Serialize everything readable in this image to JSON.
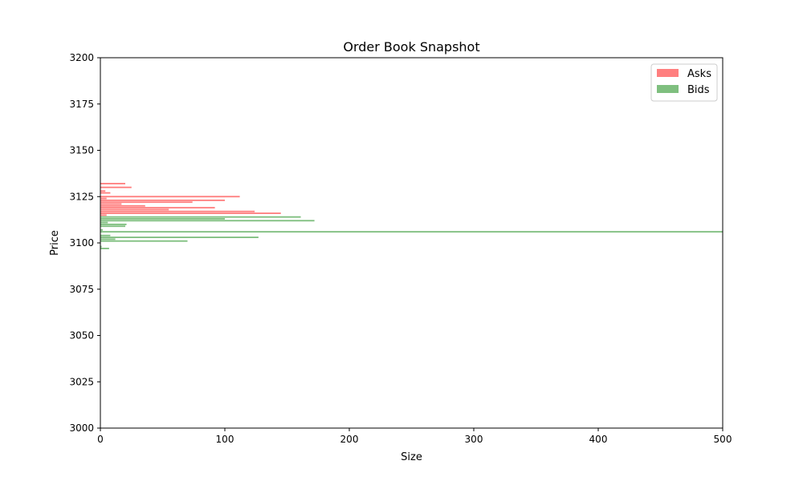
{
  "chart_data": {
    "type": "bar",
    "orientation": "horizontal",
    "title": "Order Book Snapshot",
    "xlabel": "Size",
    "ylabel": "Price",
    "xlim": [
      0,
      500
    ],
    "ylim": [
      3000,
      3200
    ],
    "xticks": [
      0,
      100,
      200,
      300,
      400,
      500
    ],
    "yticks": [
      3000,
      3025,
      3050,
      3075,
      3100,
      3125,
      3150,
      3175,
      3200
    ],
    "grid": false,
    "legend_position": "top-right",
    "series": [
      {
        "name": "Asks",
        "color": "#ff7f7f",
        "prices": [
          3132.0,
          3130.0,
          3128.0,
          3127.0,
          3125.0,
          3124.0,
          3123.0,
          3122.0,
          3121.0,
          3120.0,
          3119.0,
          3118.0,
          3117.0,
          3116.0,
          3115.0
        ],
        "sizes": [
          20,
          25,
          4,
          8,
          112,
          5,
          100,
          74,
          17,
          36,
          92,
          55,
          124,
          145,
          5
        ]
      },
      {
        "name": "Bids",
        "color": "#7fbf7f",
        "prices": [
          3114.0,
          3113.0,
          3112.0,
          3111.0,
          3110.0,
          3109.0,
          3107.0,
          3106.0,
          3104.0,
          3103.0,
          3102.0,
          3101.0,
          3098.0,
          3097.0
        ],
        "sizes": [
          161,
          100,
          172,
          6,
          21,
          20,
          2,
          500,
          8,
          127,
          12,
          70,
          1,
          7
        ]
      }
    ]
  }
}
